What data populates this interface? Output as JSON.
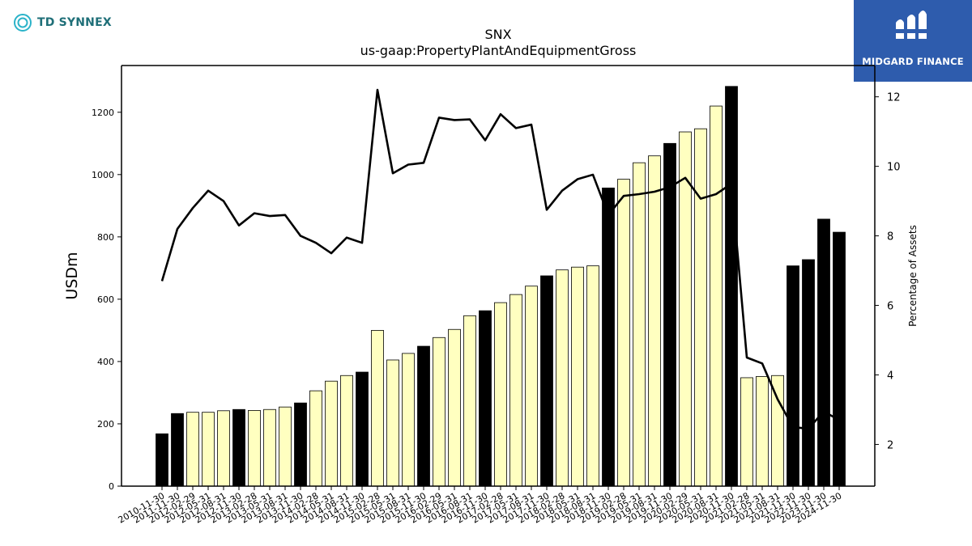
{
  "branding": {
    "left_logo_text": "TD SYNNEX",
    "right_logo_text": "MIDGARD FINANCE"
  },
  "colors": {
    "bar_highlight": "#000000",
    "bar_normal": "#ffffc0",
    "line": "#000000",
    "right_logo_bg": "#2e5cad"
  },
  "chart_data": {
    "type": "bar",
    "title": "SNX",
    "subtitle": "us-gaap:PropertyPlantAndEquipmentGross",
    "ylabel": "USDm",
    "y2label": "Percentage of Assets",
    "ylim": [
      0,
      1350
    ],
    "y2lim": [
      0.8,
      12.9
    ],
    "yticks": [
      0,
      200,
      400,
      600,
      800,
      1000,
      1200
    ],
    "y2ticks": [
      2,
      4,
      6,
      8,
      10,
      12
    ],
    "grid": false,
    "categories": [
      "2010-11-30",
      "2011-11-30",
      "2012-02-29",
      "2012-05-31",
      "2012-08-31",
      "2012-11-30",
      "2013-02-28",
      "2013-05-31",
      "2013-08-31",
      "2013-11-30",
      "2014-02-28",
      "2014-05-31",
      "2014-08-31",
      "2014-11-30",
      "2015-02-28",
      "2015-05-31",
      "2015-08-31",
      "2015-11-30",
      "2016-02-29",
      "2016-05-31",
      "2016-08-31",
      "2016-11-30",
      "2017-02-28",
      "2017-05-31",
      "2017-08-31",
      "2017-11-30",
      "2018-02-28",
      "2018-05-31",
      "2018-08-31",
      "2018-11-30",
      "2019-02-28",
      "2019-05-31",
      "2019-08-31",
      "2019-11-30",
      "2020-02-29",
      "2020-05-31",
      "2020-08-31",
      "2020-11-30",
      "2021-02-28",
      "2021-05-31",
      "2021-08-31",
      "2021-11-30",
      "2022-11-30",
      "2023-11-30",
      "2024-11-30"
    ],
    "series": [
      {
        "type": "bar",
        "values": [
          168,
          233,
          237,
          237,
          242,
          246,
          243,
          246,
          254,
          267,
          306,
          337,
          355,
          366,
          500,
          405,
          426,
          449,
          477,
          503,
          547,
          563,
          589,
          615,
          642,
          675,
          694,
          703,
          707,
          957,
          985,
          1038,
          1060,
          1100,
          1137,
          1147,
          1220,
          1283,
          348,
          352,
          355,
          707,
          727,
          857,
          815
        ],
        "highlight": [
          true,
          true,
          false,
          false,
          false,
          true,
          false,
          false,
          false,
          true,
          false,
          false,
          false,
          true,
          false,
          false,
          false,
          true,
          false,
          false,
          false,
          true,
          false,
          false,
          false,
          true,
          false,
          false,
          false,
          true,
          false,
          false,
          false,
          true,
          false,
          false,
          false,
          true,
          false,
          false,
          false,
          true,
          true,
          true,
          true
        ]
      },
      {
        "type": "line",
        "axis": "right",
        "values": [
          6.7,
          8.2,
          8.8,
          9.3,
          9.0,
          8.3,
          8.65,
          8.57,
          8.6,
          8.0,
          7.8,
          7.5,
          7.95,
          7.8,
          12.2,
          9.8,
          10.05,
          10.1,
          11.4,
          11.33,
          11.35,
          10.75,
          11.5,
          11.1,
          11.2,
          8.75,
          9.3,
          9.63,
          9.76,
          8.6,
          9.15,
          9.2,
          9.27,
          9.4,
          9.67,
          9.07,
          9.2,
          9.5,
          4.5,
          4.33,
          3.3,
          2.5,
          2.45,
          2.95,
          2.7
        ]
      }
    ]
  }
}
